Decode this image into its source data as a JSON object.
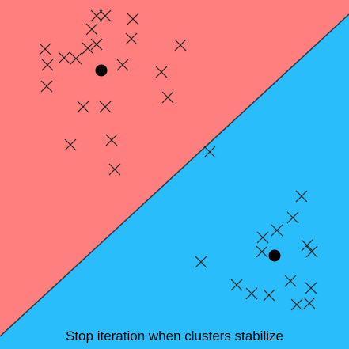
{
  "colors": {
    "cluster_a_region": "#ff7f7f",
    "cluster_b_region": "#2abdfb",
    "boundary": "#1f3a4a",
    "marker": "#222222",
    "centroid": "#000000"
  },
  "caption": "Stop iteration when clusters stabilize",
  "clusters": [
    {
      "name": "cluster-a",
      "centroid": [
        128,
        89
      ],
      "points": [
        [
          122,
          20
        ],
        [
          133,
          20
        ],
        [
          168,
          24
        ],
        [
          116,
          37
        ],
        [
          122,
          56
        ],
        [
          166,
          49
        ],
        [
          228,
          57
        ],
        [
          57,
          62
        ],
        [
          111,
          61
        ],
        [
          81,
          73
        ],
        [
          96,
          74
        ],
        [
          60,
          82
        ],
        [
          155,
          82
        ],
        [
          204,
          91
        ],
        [
          59,
          109
        ],
        [
          212,
          123
        ],
        [
          105,
          135
        ],
        [
          133,
          135
        ],
        [
          141,
          177
        ],
        [
          89,
          183
        ],
        [
          145,
          214
        ]
      ]
    },
    {
      "name": "cluster-b",
      "centroid": [
        347,
        323
      ],
      "points": [
        [
          265,
          192
        ],
        [
          381,
          248
        ],
        [
          370,
          275
        ],
        [
          350,
          291
        ],
        [
          332,
          300
        ],
        [
          388,
          310
        ],
        [
          331,
          318
        ],
        [
          394,
          318
        ],
        [
          254,
          331
        ],
        [
          299,
          360
        ],
        [
          367,
          355
        ],
        [
          393,
          364
        ],
        [
          318,
          371
        ],
        [
          340,
          373
        ],
        [
          375,
          385
        ],
        [
          391,
          383
        ]
      ]
    }
  ]
}
